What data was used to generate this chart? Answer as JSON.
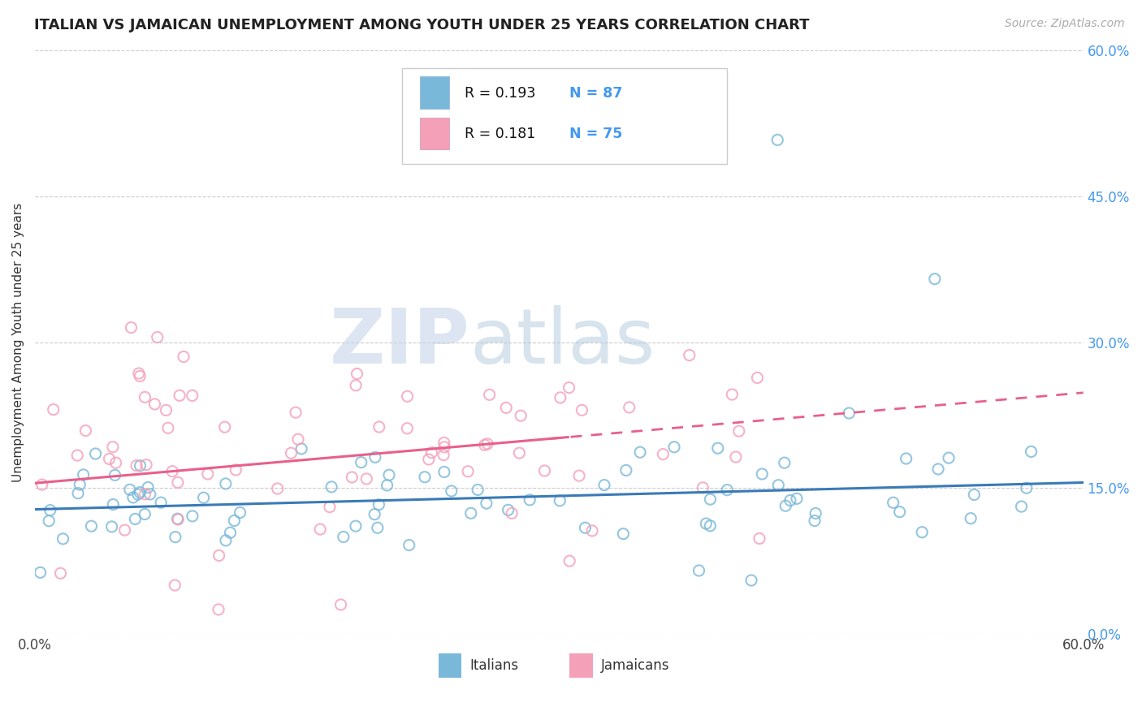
{
  "title": "ITALIAN VS JAMAICAN UNEMPLOYMENT AMONG YOUTH UNDER 25 YEARS CORRELATION CHART",
  "source_text": "Source: ZipAtlas.com",
  "ylabel": "Unemployment Among Youth under 25 years",
  "xmin": 0.0,
  "xmax": 0.6,
  "ymin": 0.0,
  "ymax": 0.6,
  "ytick_labels": [
    "0.0%",
    "15.0%",
    "30.0%",
    "45.0%",
    "60.0%"
  ],
  "ytick_vals": [
    0.0,
    0.15,
    0.3,
    0.45,
    0.6
  ],
  "xtick_labels": [
    "0.0%",
    "",
    "",
    "",
    "60.0%"
  ],
  "xtick_vals": [
    0.0,
    0.15,
    0.3,
    0.45,
    0.6
  ],
  "italian_color": "#7ab8d9",
  "jamaican_color": "#f4a0b8",
  "italian_R": 0.193,
  "italian_N": 87,
  "jamaican_R": 0.181,
  "jamaican_N": 75,
  "italian_trend_color": "#3a7ab8",
  "jamaican_trend_color": "#e8608a",
  "legend_label_italian": "Italians",
  "legend_label_jamaican": "Jamaicans",
  "background_color": "#ffffff",
  "grid_color": "#cccccc"
}
